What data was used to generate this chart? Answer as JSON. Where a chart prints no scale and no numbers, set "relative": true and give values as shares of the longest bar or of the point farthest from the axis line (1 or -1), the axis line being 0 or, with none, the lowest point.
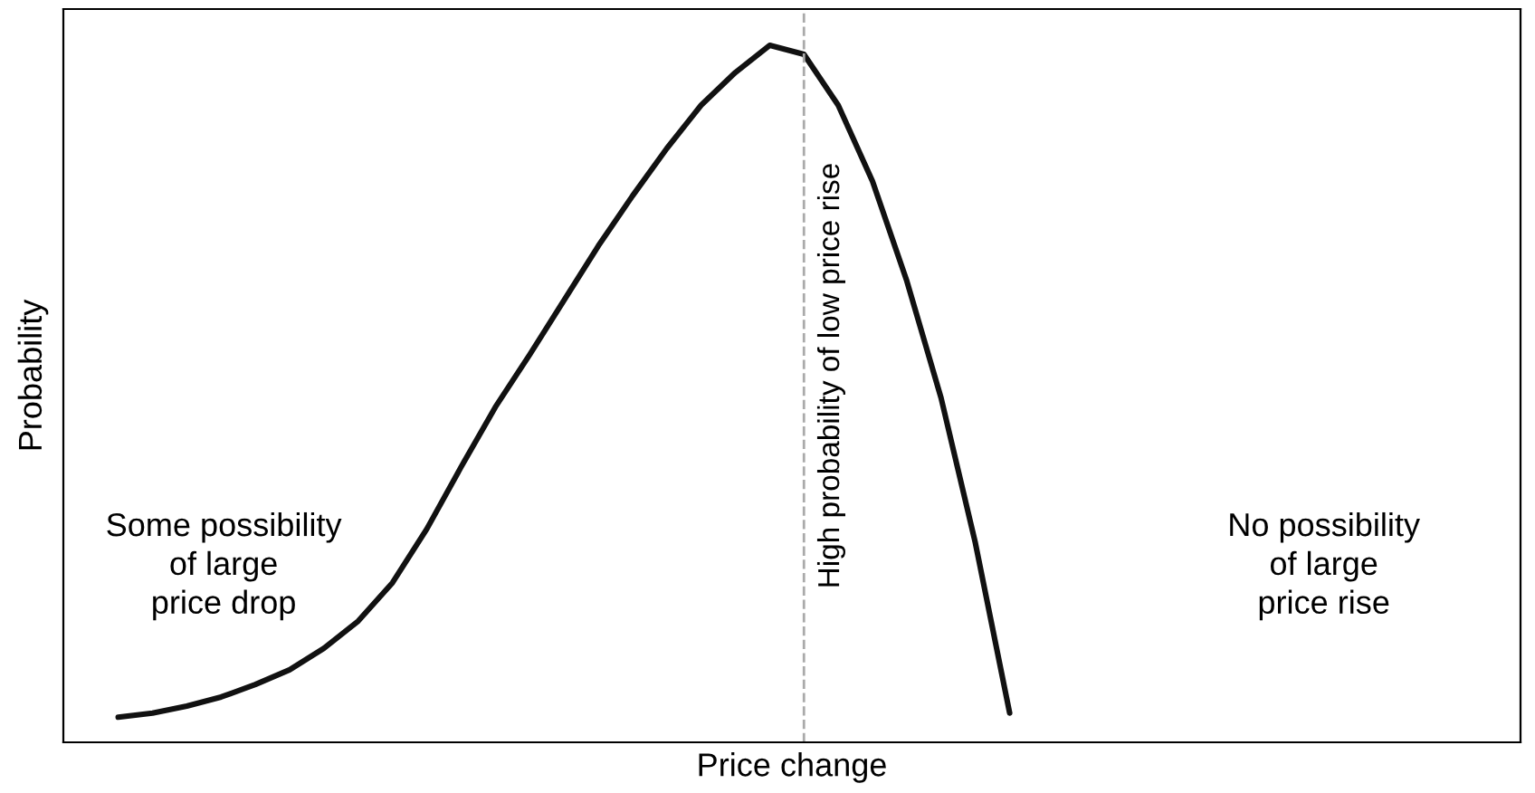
{
  "chart_data": {
    "type": "line",
    "relative": true,
    "xlabel": "Price change",
    "ylabel": "Probability",
    "categories": [
      null,
      null,
      null,
      null,
      null,
      null,
      null,
      null,
      null,
      null,
      null,
      null,
      null,
      null,
      null,
      null,
      null,
      null,
      null,
      null,
      null,
      null,
      null,
      null,
      null,
      null,
      null,
      null,
      null,
      null,
      null,
      null,
      null,
      null,
      null,
      null,
      null,
      null,
      null,
      null,
      null
    ],
    "series": [
      {
        "color": "#111111",
        "values": [
          0.036,
          0.042,
          0.052,
          0.065,
          0.083,
          0.104,
          0.135,
          0.174,
          0.229,
          0.306,
          0.395,
          0.481,
          0.556,
          0.634,
          0.712,
          0.784,
          0.852,
          0.914,
          0.961,
          1.0,
          0.987,
          0.914,
          0.805,
          0.662,
          0.494,
          0.286,
          0.042,
          null,
          null,
          null,
          null,
          null,
          null,
          null,
          null,
          null,
          null,
          null,
          null,
          null,
          null
        ]
      }
    ],
    "annotations": [
      "Some possibility\nof large\nprice drop",
      "No possibility\nof large\nprice rise",
      "High probability of low price rise"
    ],
    "marker": "none",
    "line_style": "solid",
    "legend": false
  }
}
